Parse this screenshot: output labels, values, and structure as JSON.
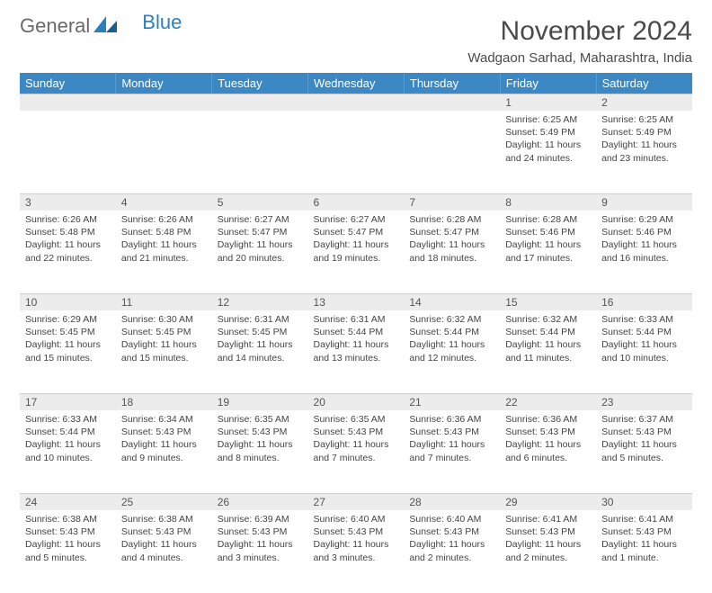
{
  "brand": {
    "part1": "General",
    "part2": "Blue"
  },
  "title": "November 2024",
  "location": "Wadgaon Sarhad, Maharashtra, India",
  "colors": {
    "header_bg": "#3b88c4",
    "header_text": "#ffffff",
    "daynum_bg": "#ececec",
    "body_text": "#444444",
    "brand_gray": "#6a6a6a",
    "brand_blue": "#2b7fbf"
  },
  "weekdays": [
    "Sunday",
    "Monday",
    "Tuesday",
    "Wednesday",
    "Thursday",
    "Friday",
    "Saturday"
  ],
  "weeks": [
    [
      null,
      null,
      null,
      null,
      null,
      {
        "n": "1",
        "sr": "Sunrise: 6:25 AM",
        "ss": "Sunset: 5:49 PM",
        "dl1": "Daylight: 11 hours",
        "dl2": "and 24 minutes."
      },
      {
        "n": "2",
        "sr": "Sunrise: 6:25 AM",
        "ss": "Sunset: 5:49 PM",
        "dl1": "Daylight: 11 hours",
        "dl2": "and 23 minutes."
      }
    ],
    [
      {
        "n": "3",
        "sr": "Sunrise: 6:26 AM",
        "ss": "Sunset: 5:48 PM",
        "dl1": "Daylight: 11 hours",
        "dl2": "and 22 minutes."
      },
      {
        "n": "4",
        "sr": "Sunrise: 6:26 AM",
        "ss": "Sunset: 5:48 PM",
        "dl1": "Daylight: 11 hours",
        "dl2": "and 21 minutes."
      },
      {
        "n": "5",
        "sr": "Sunrise: 6:27 AM",
        "ss": "Sunset: 5:47 PM",
        "dl1": "Daylight: 11 hours",
        "dl2": "and 20 minutes."
      },
      {
        "n": "6",
        "sr": "Sunrise: 6:27 AM",
        "ss": "Sunset: 5:47 PM",
        "dl1": "Daylight: 11 hours",
        "dl2": "and 19 minutes."
      },
      {
        "n": "7",
        "sr": "Sunrise: 6:28 AM",
        "ss": "Sunset: 5:47 PM",
        "dl1": "Daylight: 11 hours",
        "dl2": "and 18 minutes."
      },
      {
        "n": "8",
        "sr": "Sunrise: 6:28 AM",
        "ss": "Sunset: 5:46 PM",
        "dl1": "Daylight: 11 hours",
        "dl2": "and 17 minutes."
      },
      {
        "n": "9",
        "sr": "Sunrise: 6:29 AM",
        "ss": "Sunset: 5:46 PM",
        "dl1": "Daylight: 11 hours",
        "dl2": "and 16 minutes."
      }
    ],
    [
      {
        "n": "10",
        "sr": "Sunrise: 6:29 AM",
        "ss": "Sunset: 5:45 PM",
        "dl1": "Daylight: 11 hours",
        "dl2": "and 15 minutes."
      },
      {
        "n": "11",
        "sr": "Sunrise: 6:30 AM",
        "ss": "Sunset: 5:45 PM",
        "dl1": "Daylight: 11 hours",
        "dl2": "and 15 minutes."
      },
      {
        "n": "12",
        "sr": "Sunrise: 6:31 AM",
        "ss": "Sunset: 5:45 PM",
        "dl1": "Daylight: 11 hours",
        "dl2": "and 14 minutes."
      },
      {
        "n": "13",
        "sr": "Sunrise: 6:31 AM",
        "ss": "Sunset: 5:44 PM",
        "dl1": "Daylight: 11 hours",
        "dl2": "and 13 minutes."
      },
      {
        "n": "14",
        "sr": "Sunrise: 6:32 AM",
        "ss": "Sunset: 5:44 PM",
        "dl1": "Daylight: 11 hours",
        "dl2": "and 12 minutes."
      },
      {
        "n": "15",
        "sr": "Sunrise: 6:32 AM",
        "ss": "Sunset: 5:44 PM",
        "dl1": "Daylight: 11 hours",
        "dl2": "and 11 minutes."
      },
      {
        "n": "16",
        "sr": "Sunrise: 6:33 AM",
        "ss": "Sunset: 5:44 PM",
        "dl1": "Daylight: 11 hours",
        "dl2": "and 10 minutes."
      }
    ],
    [
      {
        "n": "17",
        "sr": "Sunrise: 6:33 AM",
        "ss": "Sunset: 5:44 PM",
        "dl1": "Daylight: 11 hours",
        "dl2": "and 10 minutes."
      },
      {
        "n": "18",
        "sr": "Sunrise: 6:34 AM",
        "ss": "Sunset: 5:43 PM",
        "dl1": "Daylight: 11 hours",
        "dl2": "and 9 minutes."
      },
      {
        "n": "19",
        "sr": "Sunrise: 6:35 AM",
        "ss": "Sunset: 5:43 PM",
        "dl1": "Daylight: 11 hours",
        "dl2": "and 8 minutes."
      },
      {
        "n": "20",
        "sr": "Sunrise: 6:35 AM",
        "ss": "Sunset: 5:43 PM",
        "dl1": "Daylight: 11 hours",
        "dl2": "and 7 minutes."
      },
      {
        "n": "21",
        "sr": "Sunrise: 6:36 AM",
        "ss": "Sunset: 5:43 PM",
        "dl1": "Daylight: 11 hours",
        "dl2": "and 7 minutes."
      },
      {
        "n": "22",
        "sr": "Sunrise: 6:36 AM",
        "ss": "Sunset: 5:43 PM",
        "dl1": "Daylight: 11 hours",
        "dl2": "and 6 minutes."
      },
      {
        "n": "23",
        "sr": "Sunrise: 6:37 AM",
        "ss": "Sunset: 5:43 PM",
        "dl1": "Daylight: 11 hours",
        "dl2": "and 5 minutes."
      }
    ],
    [
      {
        "n": "24",
        "sr": "Sunrise: 6:38 AM",
        "ss": "Sunset: 5:43 PM",
        "dl1": "Daylight: 11 hours",
        "dl2": "and 5 minutes."
      },
      {
        "n": "25",
        "sr": "Sunrise: 6:38 AM",
        "ss": "Sunset: 5:43 PM",
        "dl1": "Daylight: 11 hours",
        "dl2": "and 4 minutes."
      },
      {
        "n": "26",
        "sr": "Sunrise: 6:39 AM",
        "ss": "Sunset: 5:43 PM",
        "dl1": "Daylight: 11 hours",
        "dl2": "and 3 minutes."
      },
      {
        "n": "27",
        "sr": "Sunrise: 6:40 AM",
        "ss": "Sunset: 5:43 PM",
        "dl1": "Daylight: 11 hours",
        "dl2": "and 3 minutes."
      },
      {
        "n": "28",
        "sr": "Sunrise: 6:40 AM",
        "ss": "Sunset: 5:43 PM",
        "dl1": "Daylight: 11 hours",
        "dl2": "and 2 minutes."
      },
      {
        "n": "29",
        "sr": "Sunrise: 6:41 AM",
        "ss": "Sunset: 5:43 PM",
        "dl1": "Daylight: 11 hours",
        "dl2": "and 2 minutes."
      },
      {
        "n": "30",
        "sr": "Sunrise: 6:41 AM",
        "ss": "Sunset: 5:43 PM",
        "dl1": "Daylight: 11 hours",
        "dl2": "and 1 minute."
      }
    ]
  ]
}
